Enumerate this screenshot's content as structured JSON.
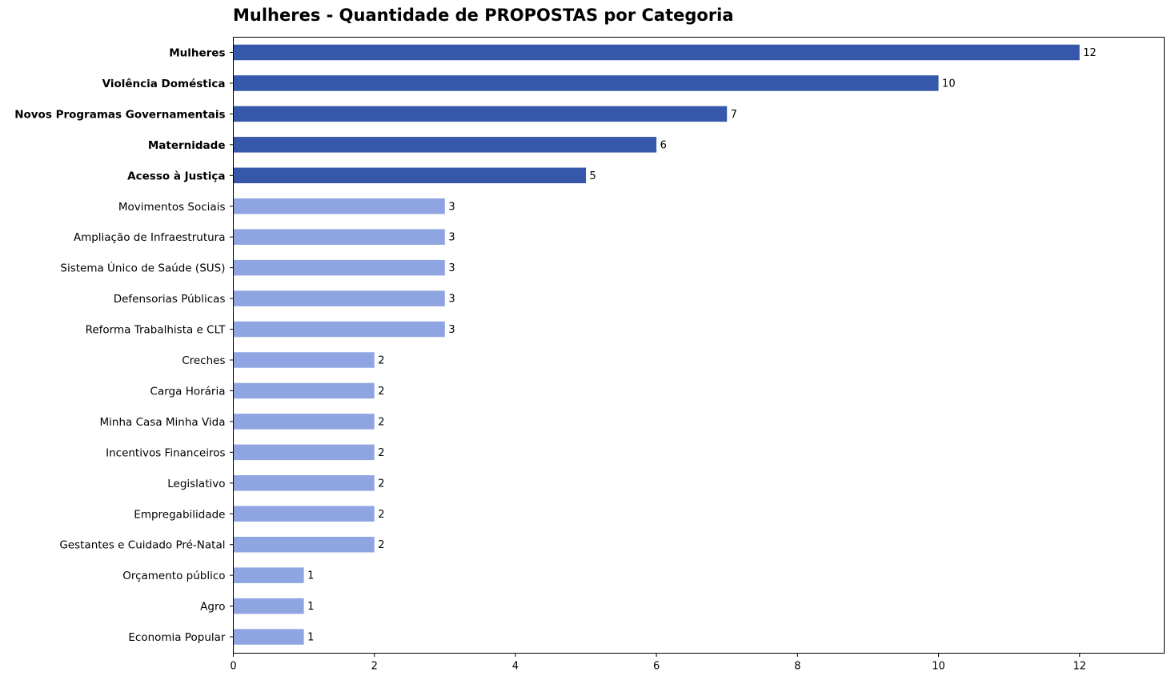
{
  "chart_data": {
    "type": "bar",
    "orientation": "horizontal",
    "title": "Mulheres - Quantidade de PROPOSTAS por Categoria",
    "xlabel": "",
    "ylabel": "",
    "xlim": [
      0,
      13.2
    ],
    "xticks": [
      0,
      2,
      4,
      6,
      8,
      10,
      12
    ],
    "grid": false,
    "highlight_color": "#3558aa",
    "base_color": "#8fa5e2",
    "categories": [
      "Mulheres",
      "Violência Doméstica",
      "Novos Programas Governamentais",
      "Maternidade",
      "Acesso à Justiça",
      "Movimentos Sociais",
      "Ampliação de Infraestrutura",
      "Sistema Único de Saúde (SUS)",
      "Defensorias Públicas",
      "Reforma Trabalhista e CLT",
      "Creches",
      "Carga Horária",
      "Minha Casa Minha Vida",
      "Incentivos Financeiros",
      "Legislativo",
      "Empregabilidade",
      "Gestantes e Cuidado Pré-Natal",
      "Orçamento público",
      "Agro",
      "Economia Popular"
    ],
    "values": [
      12,
      10,
      7,
      6,
      5,
      3,
      3,
      3,
      3,
      3,
      2,
      2,
      2,
      2,
      2,
      2,
      2,
      1,
      1,
      1
    ],
    "highlighted": [
      true,
      true,
      true,
      true,
      true,
      false,
      false,
      false,
      false,
      false,
      false,
      false,
      false,
      false,
      false,
      false,
      false,
      false,
      false,
      false
    ]
  }
}
